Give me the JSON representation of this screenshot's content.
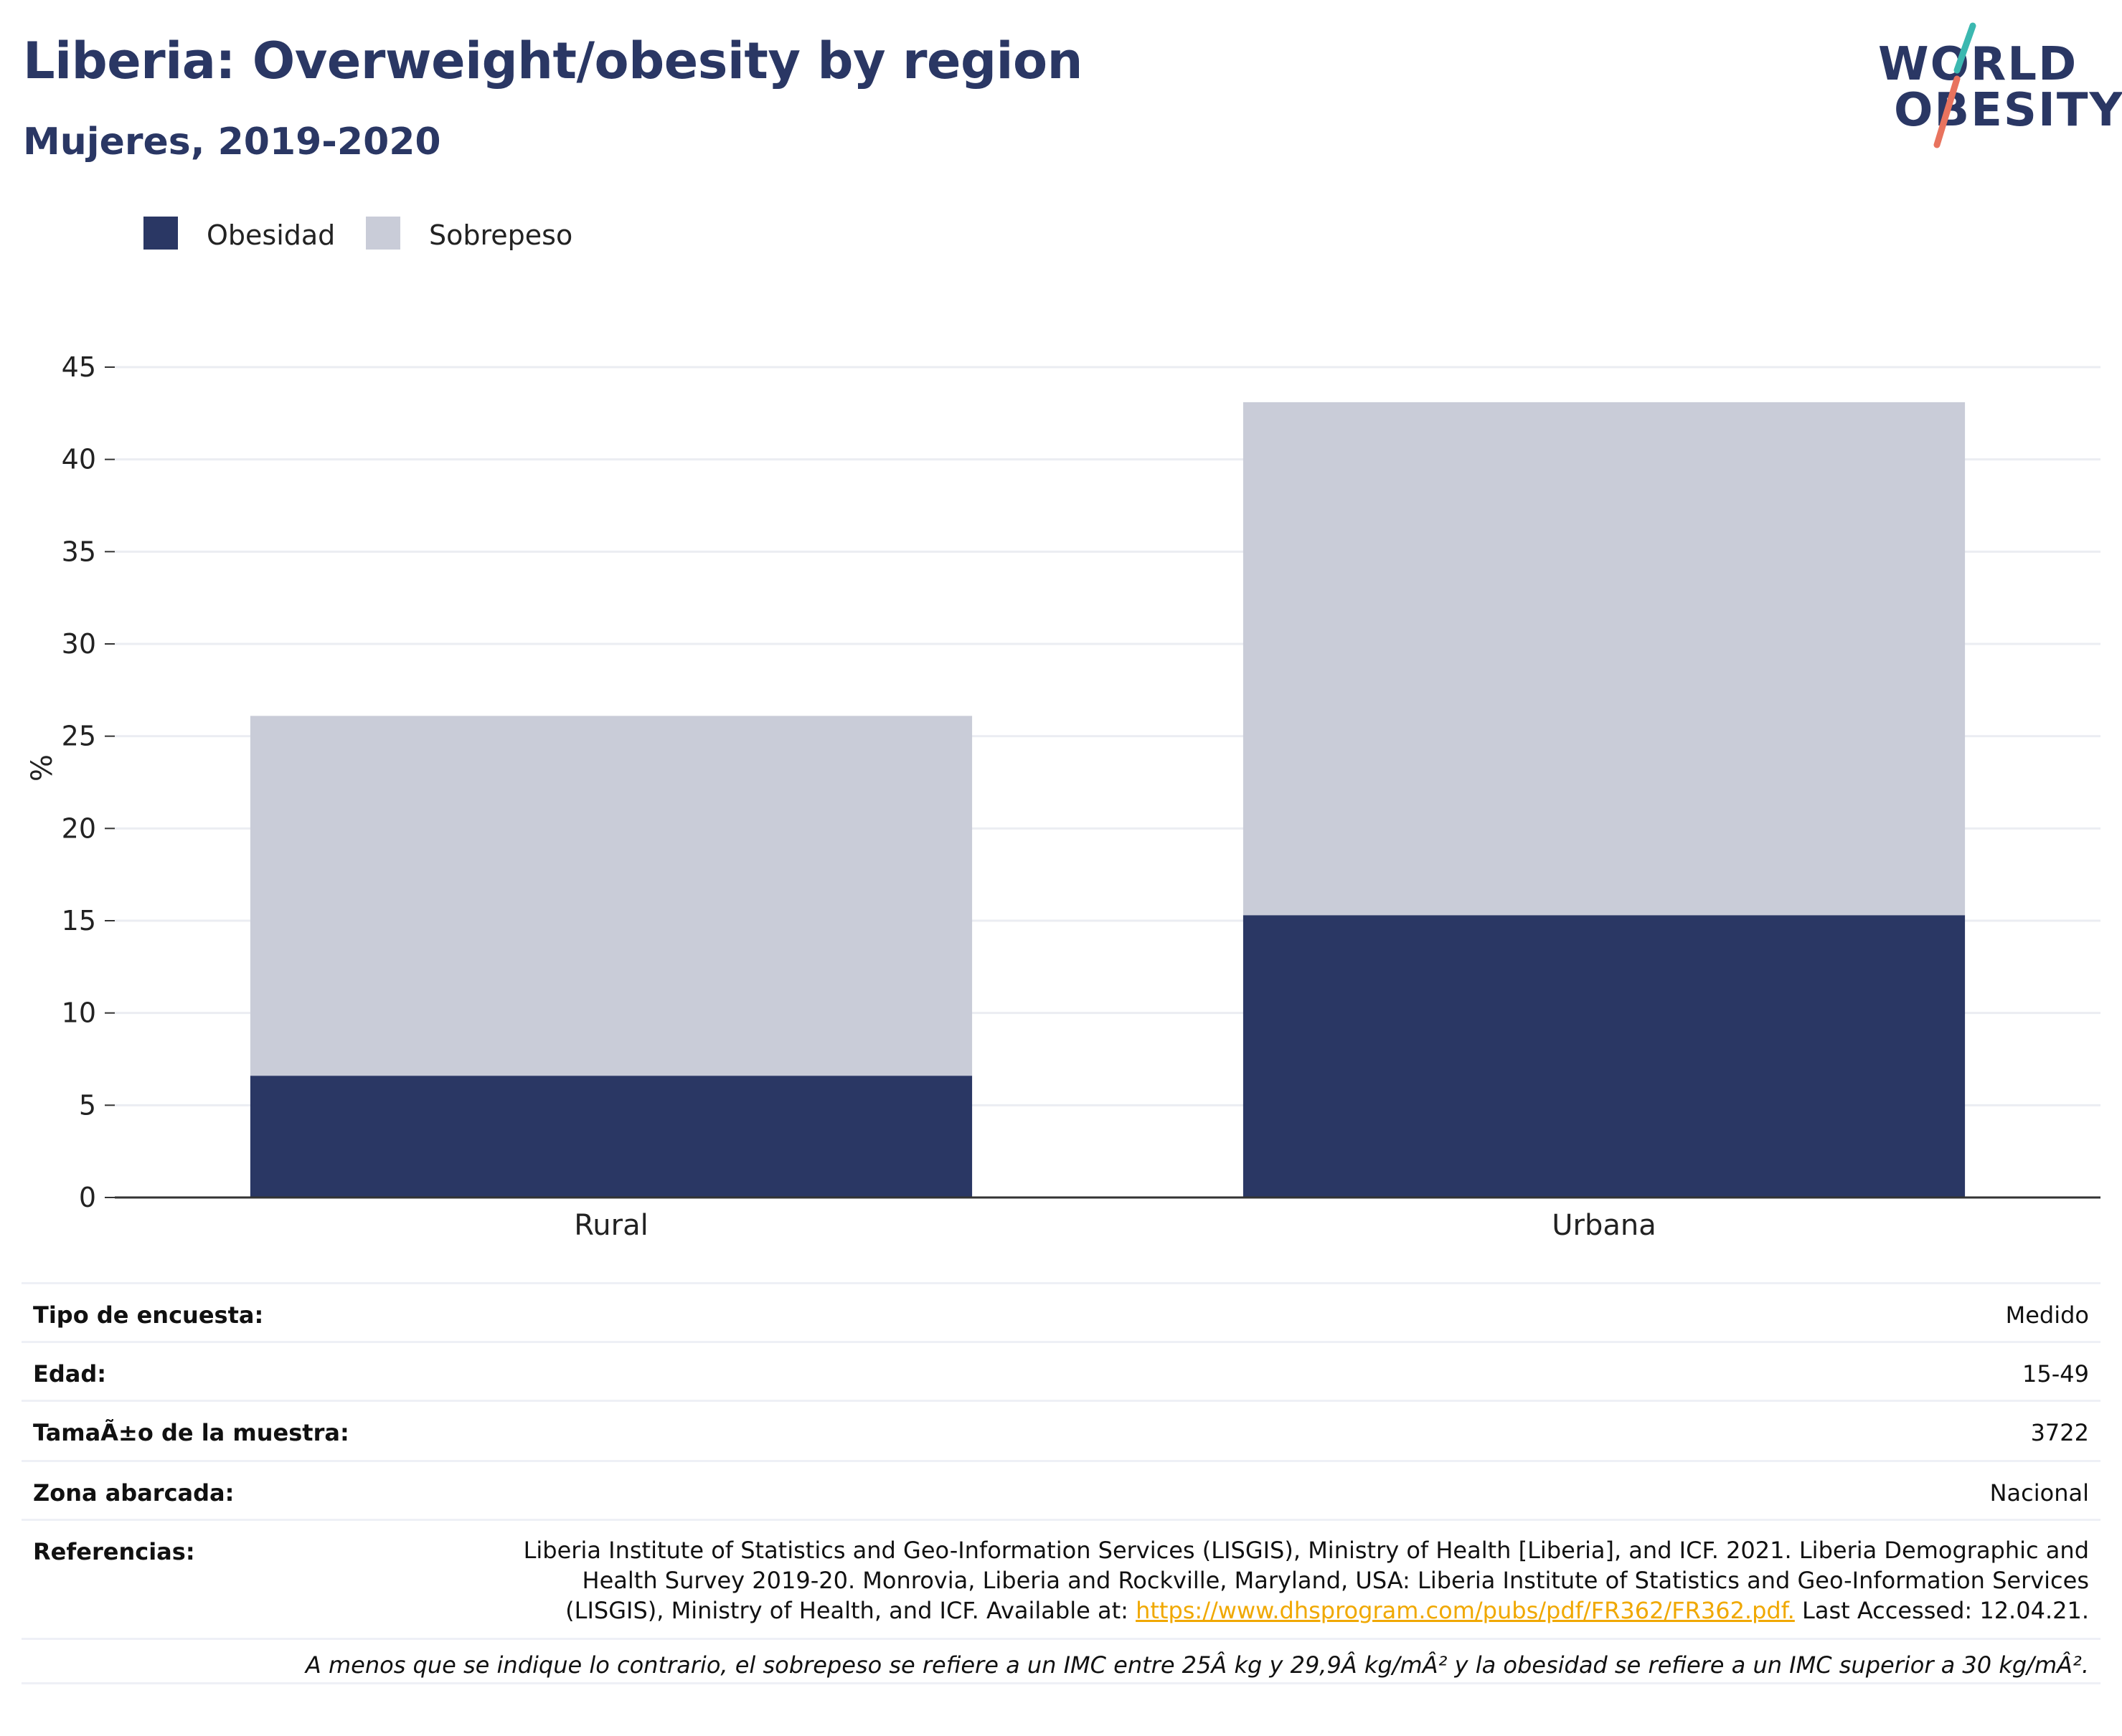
{
  "header": {
    "title": "Liberia: Overweight/obesity by region",
    "subtitle": "Mujeres, 2019-2020"
  },
  "logo": {
    "line1": "WORLD",
    "line2": "OBESITY",
    "accent_colors": [
      "#3bb8b0",
      "#e8735e"
    ]
  },
  "colors": {
    "obesidad": "#2a3764",
    "sobrepeso": "#c9ccd8",
    "grid": "#ebedf2",
    "axis": "#333333"
  },
  "chart_data": {
    "type": "bar",
    "stacked": true,
    "categories": [
      "Rural",
      "Urbana"
    ],
    "series": [
      {
        "name": "Obesidad",
        "values": [
          6.6,
          15.3
        ]
      },
      {
        "name": "Sobrepeso",
        "values": [
          19.5,
          27.8
        ]
      }
    ],
    "ylabel": "%",
    "xlabel": "",
    "ylim": [
      0,
      45
    ],
    "yticks": [
      0,
      5,
      10,
      15,
      20,
      25,
      30,
      35,
      40,
      45
    ],
    "grid": true,
    "legend": "top-left"
  },
  "info": {
    "rows": [
      {
        "key": "Tipo de encuesta:",
        "value": "Medido"
      },
      {
        "key": "Edad:",
        "value": "15-49"
      },
      {
        "key": "TamaÃ±o de la muestra:",
        "value": "3722"
      },
      {
        "key": "Zona abarcada:",
        "value": "Nacional"
      }
    ],
    "references": {
      "key": "Referencias:",
      "text_before": "Liberia Institute of Statistics and Geo-Information Services (LISGIS), Ministry of Health [Liberia], and ICF. 2021. Liberia Demographic and Health Survey 2019-20. Monrovia, Liberia and Rockville, Maryland, USA: Liberia Institute of Statistics and Geo-Information Services (LISGIS), Ministry of Health, and ICF. Available at:",
      "link": "https://www.dhsprogram.com/pubs/pdf/FR362/FR362.pdf.",
      "text_after": "Last Accessed: 12.04.21."
    },
    "footnote": "A menos que se indique lo contrario, el sobrepeso se refiere a un IMC entre 25Â kg y 29,9Â kg/mÂ² y la obesidad se refiere a un IMC superior a 30 kg/mÂ²."
  }
}
